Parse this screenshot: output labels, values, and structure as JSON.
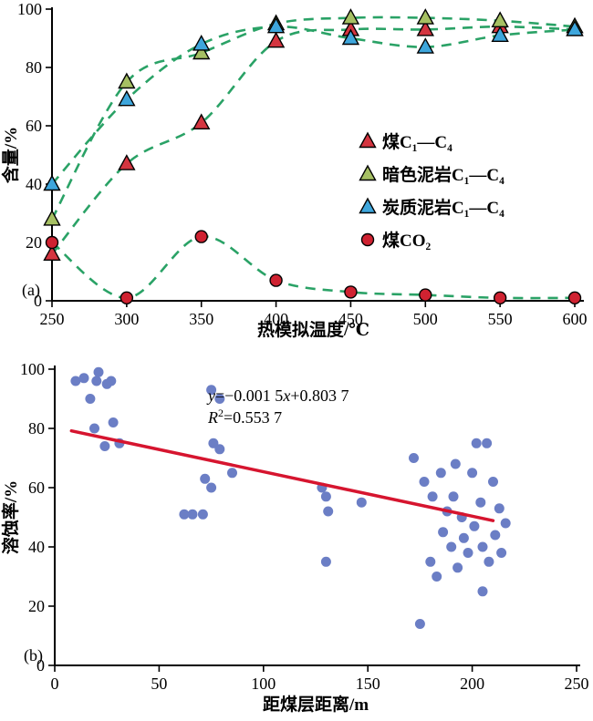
{
  "figure": {
    "background": "#ffffff"
  },
  "chart_data": [
    {
      "id": "a",
      "type": "line",
      "panel_label": "(a)",
      "xlabel": "热模拟温度/℃",
      "ylabel": "含量/%",
      "xlim": [
        250,
        600
      ],
      "ylim": [
        0,
        100
      ],
      "xticks": [
        "250",
        "300",
        "350",
        "400",
        "450",
        "500",
        "550",
        "600"
      ],
      "yticks": [
        "0",
        "20",
        "40",
        "60",
        "80",
        "100"
      ],
      "grid": false,
      "legend_position": "inside-right",
      "line_color": "#2aa266",
      "line_style": "dashed",
      "series": [
        {
          "name": "煤C₁—C₄",
          "marker": "triangle",
          "color": "#d43540",
          "x": [
            250,
            300,
            350,
            400,
            450,
            500,
            550,
            600
          ],
          "values": [
            16,
            47,
            61,
            89,
            93,
            93,
            94,
            93
          ]
        },
        {
          "name": "暗色泥岩C₁—C₄",
          "marker": "triangle",
          "color": "#a6c063",
          "x": [
            250,
            300,
            350,
            400,
            450,
            500,
            550,
            600
          ],
          "values": [
            28,
            75,
            85,
            95,
            97,
            97,
            96,
            94
          ]
        },
        {
          "name": "炭质泥岩C₁—C₄",
          "marker": "triangle",
          "color": "#3ea6dc",
          "x": [
            250,
            300,
            350,
            400,
            450,
            500,
            550,
            600
          ],
          "values": [
            40,
            69,
            88,
            94,
            90,
            87,
            91,
            93
          ]
        },
        {
          "name": "煤CO₂",
          "marker": "circle",
          "color": "#cf2231",
          "x": [
            250,
            300,
            350,
            400,
            450,
            500,
            550,
            600
          ],
          "values": [
            20,
            1,
            22,
            7,
            3,
            2,
            1,
            1
          ]
        }
      ]
    },
    {
      "id": "b",
      "type": "scatter",
      "panel_label": "(b)",
      "xlabel": "距煤层距离/m",
      "ylabel": "溶蚀率/%",
      "xlim": [
        0,
        250
      ],
      "ylim": [
        0,
        100
      ],
      "xticks": [
        "0",
        "50",
        "100",
        "150",
        "200",
        "250"
      ],
      "yticks": [
        "0",
        "20",
        "40",
        "60",
        "80",
        "100"
      ],
      "grid": false,
      "point_color": "#6b7ec5",
      "points": [
        [
          10,
          96
        ],
        [
          14,
          97
        ],
        [
          17,
          90
        ],
        [
          20,
          96
        ],
        [
          21,
          99
        ],
        [
          25,
          95
        ],
        [
          27,
          96
        ],
        [
          19,
          80
        ],
        [
          28,
          82
        ],
        [
          24,
          74
        ],
        [
          31,
          75
        ],
        [
          62,
          51
        ],
        [
          66,
          51
        ],
        [
          71,
          51
        ],
        [
          72,
          63
        ],
        [
          75,
          60
        ],
        [
          76,
          75
        ],
        [
          79,
          73
        ],
        [
          75,
          93
        ],
        [
          79,
          90
        ],
        [
          85,
          65
        ],
        [
          128,
          60
        ],
        [
          130,
          57
        ],
        [
          131,
          52
        ],
        [
          130,
          35
        ],
        [
          147,
          55
        ],
        [
          172,
          70
        ],
        [
          175,
          14
        ],
        [
          177,
          62
        ],
        [
          180,
          35
        ],
        [
          181,
          57
        ],
        [
          183,
          30
        ],
        [
          185,
          65
        ],
        [
          186,
          45
        ],
        [
          188,
          52
        ],
        [
          190,
          40
        ],
        [
          191,
          57
        ],
        [
          192,
          68
        ],
        [
          193,
          33
        ],
        [
          195,
          50
        ],
        [
          196,
          43
        ],
        [
          198,
          38
        ],
        [
          200,
          65
        ],
        [
          201,
          47
        ],
        [
          202,
          75
        ],
        [
          204,
          55
        ],
        [
          205,
          40
        ],
        [
          205,
          25
        ],
        [
          207,
          75
        ],
        [
          208,
          35
        ],
        [
          210,
          62
        ],
        [
          211,
          44
        ],
        [
          213,
          53
        ],
        [
          214,
          38
        ],
        [
          216,
          48
        ]
      ],
      "regression": {
        "color": "#d6152f",
        "slope_pct": -0.15,
        "intercept_pct": 80.37,
        "x_start": 8,
        "x_end": 210,
        "equation": {
          "var1": "y",
          "mid": "=−0.001 5",
          "var2": "x",
          "tail": "+0.803 7",
          "r_var": "R",
          "r_sup": "2",
          "r_tail": "=0.553 7"
        }
      }
    }
  ]
}
